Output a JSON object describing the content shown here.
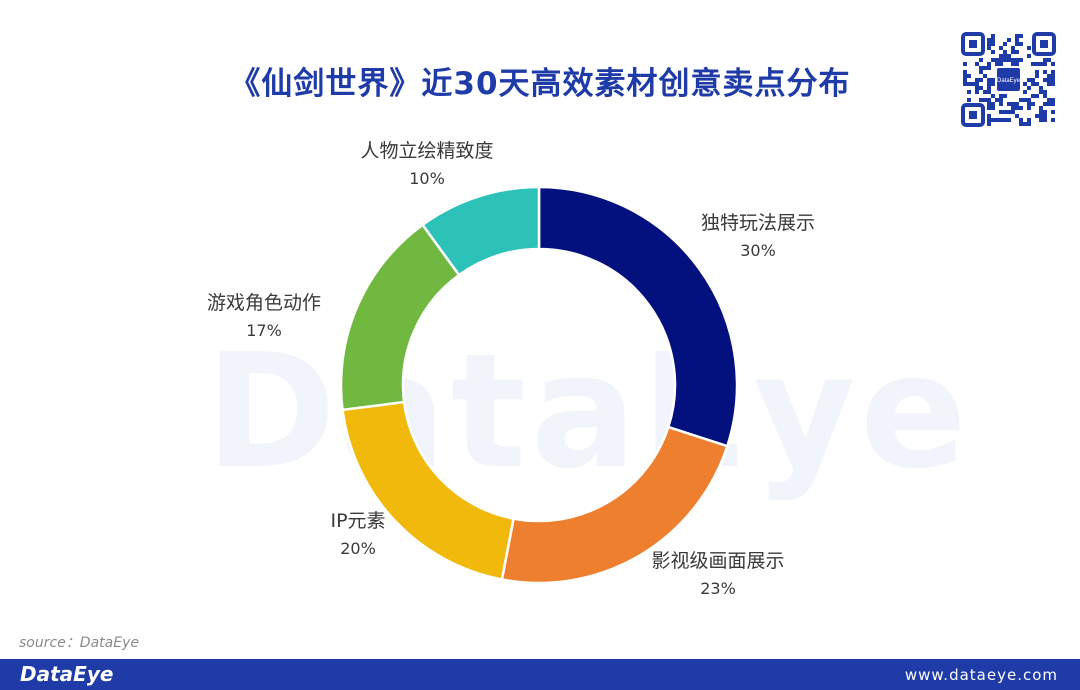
{
  "title": "《仙剑世界》近30天高效素材创意卖点分布",
  "watermark": "DataEye",
  "qr_badge": "DataEye",
  "source": "source：DataEye",
  "footer": {
    "logo": "DataEye",
    "url": "www.dataeye.com"
  },
  "chart_data": {
    "type": "pie",
    "donut": true,
    "categories": [
      "独特玩法展示",
      "影视级画面展示",
      "IP元素",
      "游戏角色动作",
      "人物立绘精致度"
    ],
    "values": [
      30,
      23,
      20,
      17,
      10
    ],
    "value_labels": [
      "30%",
      "23%",
      "20%",
      "17%",
      "10%"
    ],
    "colors": [
      "#03117f",
      "#ee7f2e",
      "#f0b90b",
      "#70b840",
      "#2cc2b8"
    ],
    "start": "top",
    "direction": "clockwise",
    "legend": "none"
  }
}
